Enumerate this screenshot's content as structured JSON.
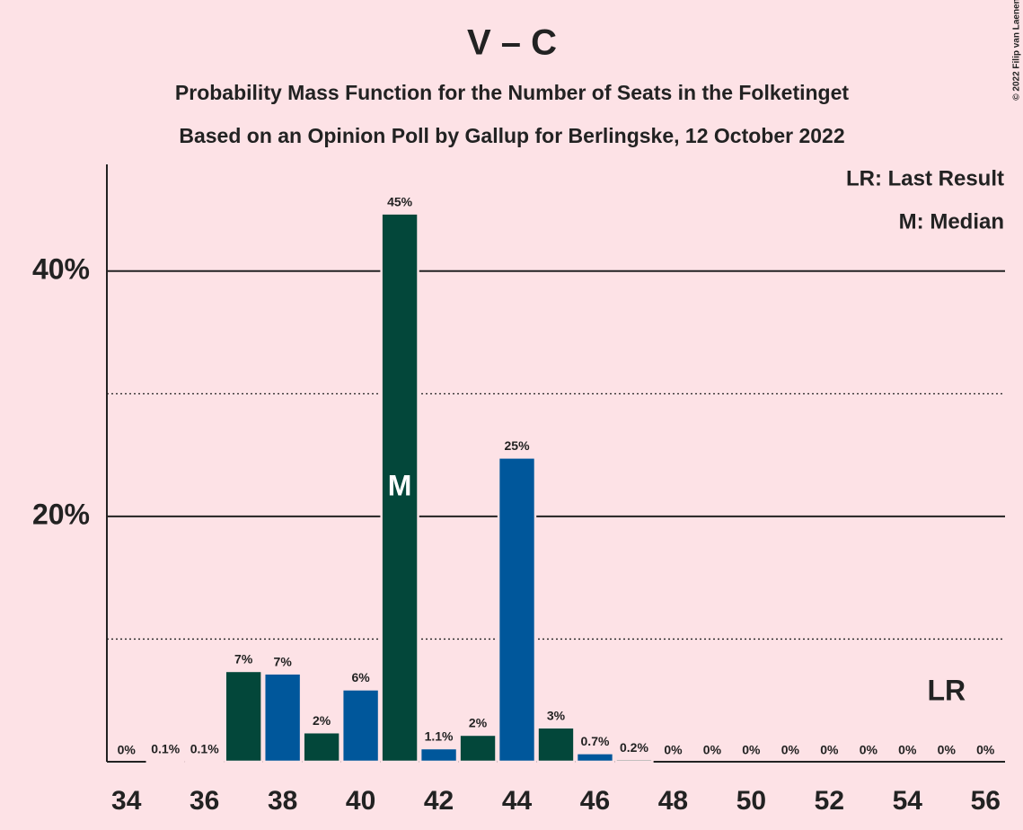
{
  "chart_data": {
    "type": "bar",
    "title": "V – C",
    "subtitle": [
      "Probability Mass Function for the Number of Seats in the Folketinget",
      "Based on an Opinion Poll by Gallup for Berlingske, 12 October 2022"
    ],
    "credit": "© 2022 Filip van Laenen",
    "legend": [
      "LR: Last Result",
      "M: Median"
    ],
    "x": [
      34,
      35,
      36,
      37,
      38,
      39,
      40,
      41,
      42,
      43,
      44,
      45,
      46,
      47,
      48,
      49,
      50,
      51,
      52,
      53,
      54,
      55,
      56
    ],
    "values": [
      0,
      0.1,
      0.1,
      7.4,
      7.2,
      2.4,
      5.9,
      44.7,
      1.1,
      2.2,
      24.8,
      2.8,
      0.7,
      0.2,
      0,
      0,
      0,
      0,
      0,
      0,
      0,
      0,
      0
    ],
    "value_labels": [
      "0%",
      "0.1%",
      "0.1%",
      "7%",
      "7%",
      "2%",
      "6%",
      "45%",
      "1.1%",
      "2%",
      "25%",
      "3%",
      "0.7%",
      "0.2%",
      "0%",
      "0%",
      "0%",
      "0%",
      "0%",
      "0%",
      "0%",
      "0%",
      "0%"
    ],
    "colors": [
      "#03473a",
      "#00579b",
      "#03473a",
      "#03473a",
      "#00579b",
      "#03473a",
      "#00579b",
      "#03473a",
      "#00579b",
      "#03473a",
      "#00579b",
      "#03473a",
      "#00579b",
      "#03473a",
      "#00579b",
      "#03473a",
      "#00579b",
      "#03473a",
      "#00579b",
      "#03473a",
      "#00579b",
      "#03473a",
      "#00579b"
    ],
    "median": {
      "x": 41,
      "label": "M"
    },
    "last_result": {
      "x": 55,
      "label": "LR"
    },
    "xlim": [
      33.5,
      56.5
    ],
    "xticks": [
      34,
      36,
      38,
      40,
      42,
      44,
      46,
      48,
      50,
      52,
      54,
      56
    ],
    "ylim": [
      0,
      48.7
    ],
    "yticks": [
      {
        "value": 20,
        "label": "20%"
      },
      {
        "value": 40,
        "label": "40%"
      }
    ],
    "minor_grid": [
      10,
      30
    ]
  }
}
